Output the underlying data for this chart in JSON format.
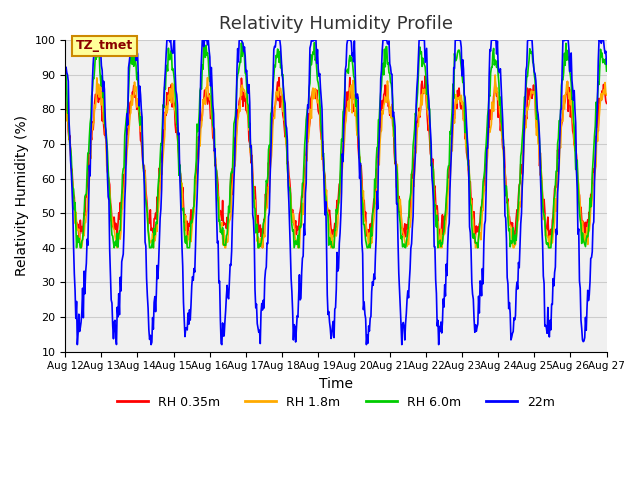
{
  "title": "Relativity Humidity Profile",
  "xlabel": "Time",
  "ylabel": "Relativity Humidity (%)",
  "ylim": [
    10,
    100
  ],
  "xlim": [
    0,
    15
  ],
  "x_tick_labels": [
    "Aug 12",
    "Aug 13",
    "Aug 14",
    "Aug 15",
    "Aug 16",
    "Aug 17",
    "Aug 18",
    "Aug 19",
    "Aug 20",
    "Aug 21",
    "Aug 22",
    "Aug 23",
    "Aug 24",
    "Aug 25",
    "Aug 26",
    "Aug 27"
  ],
  "legend_labels": [
    "RH 0.35m",
    "RH 1.8m",
    "RH 6.0m",
    "22m"
  ],
  "legend_colors": [
    "#ff0000",
    "#ffaa00",
    "#00cc00",
    "#0000ff"
  ],
  "annotation_text": "TZ_tmet",
  "annotation_bg": "#ffff99",
  "annotation_border": "#cc8800",
  "grid_color": "#cccccc",
  "bg_color": "#e8e8e8",
  "plot_bg": "#f0f0f0"
}
